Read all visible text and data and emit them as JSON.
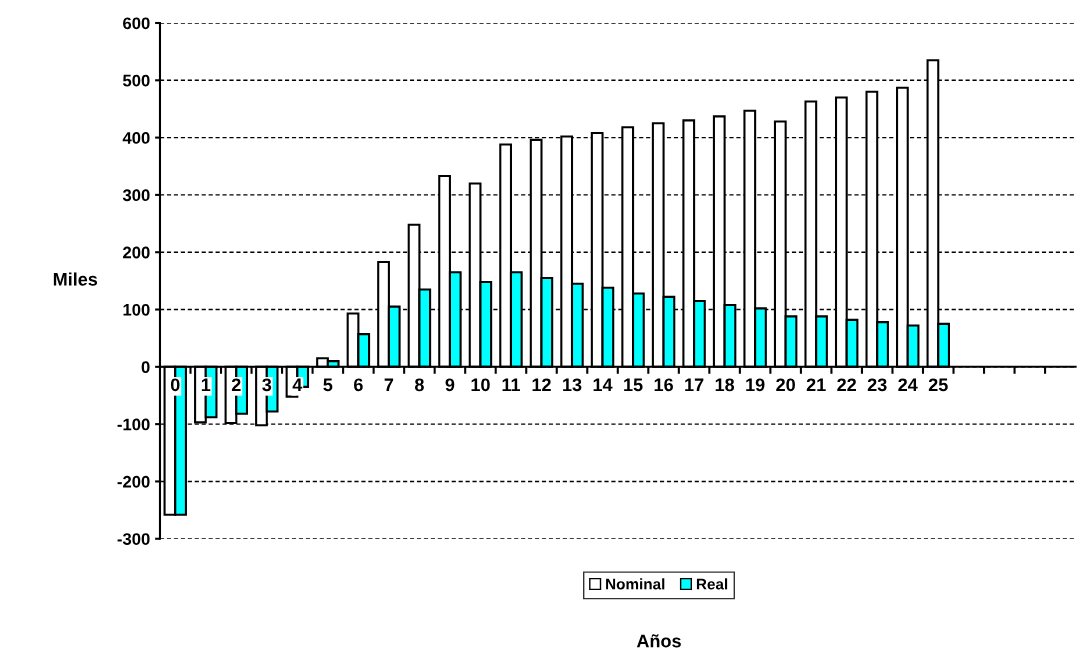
{
  "chart_data": {
    "type": "bar",
    "xlabel": "Años",
    "ylabel": "Miles",
    "categories": [
      "0",
      "1",
      "2",
      "3",
      "4",
      "5",
      "6",
      "7",
      "8",
      "9",
      "10",
      "11",
      "12",
      "13",
      "14",
      "15",
      "16",
      "17",
      "18",
      "19",
      "20",
      "21",
      "22",
      "23",
      "24",
      "25",
      null,
      null,
      null,
      null
    ],
    "series": [
      {
        "name": "Nominal",
        "color": "#ffffff",
        "values": [
          -258,
          -97,
          -98,
          -102,
          -52,
          15,
          93,
          183,
          248,
          333,
          320,
          388,
          396,
          402,
          408,
          418,
          425,
          430,
          437,
          447,
          428,
          463,
          470,
          480,
          487,
          535,
          null,
          null,
          null,
          null
        ]
      },
      {
        "name": "Real",
        "color": "#00ffff",
        "values": [
          -258,
          -88,
          -82,
          -78,
          -35,
          10,
          57,
          105,
          135,
          165,
          148,
          165,
          155,
          145,
          138,
          128,
          122,
          115,
          108,
          102,
          88,
          88,
          82,
          78,
          72,
          75,
          null,
          null,
          null,
          null
        ]
      }
    ],
    "ylim": [
      -300,
      600
    ],
    "yticks": [
      -300,
      -200,
      -100,
      0,
      100,
      200,
      300,
      400,
      500,
      600
    ],
    "grid": "y",
    "legend": "bottom"
  }
}
